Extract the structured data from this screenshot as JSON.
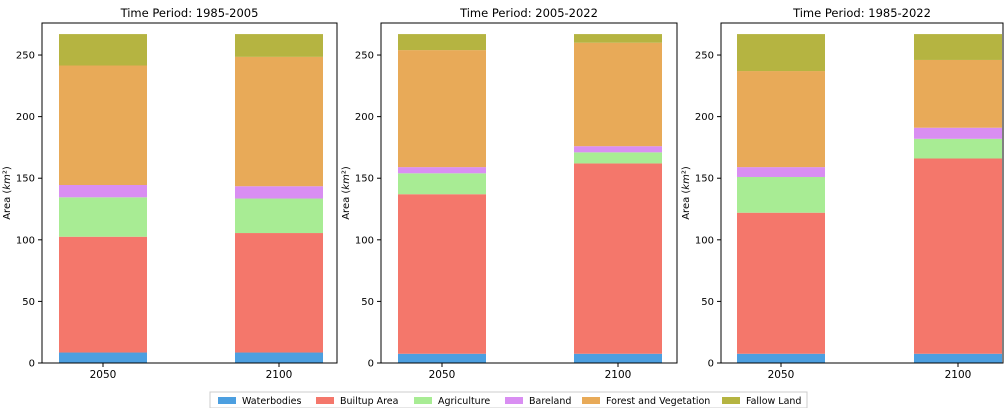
{
  "figure": {
    "legend_position": "bottom-center",
    "legend": [
      {
        "name": "Waterbodies",
        "color": "#4c9fe0"
      },
      {
        "name": "Builtup Area",
        "color": "#f4776b"
      },
      {
        "name": "Agriculture",
        "color": "#a8ec94"
      },
      {
        "name": "Bareland",
        "color": "#d98ef2"
      },
      {
        "name": "Forest and Vegetation",
        "color": "#e8aa58"
      },
      {
        "name": "Fallow Land",
        "color": "#b5b441"
      }
    ]
  },
  "chart_data": [
    {
      "type": "bar",
      "stacked": true,
      "title": "Time Period: 1985-2005",
      "xlabel": "",
      "ylabel": "Area (km²)",
      "ylim": [
        0,
        276
      ],
      "yticks": [
        0,
        50,
        100,
        150,
        200,
        250
      ],
      "categories": [
        "2050",
        "2100"
      ],
      "series": [
        {
          "name": "Waterbodies",
          "values": [
            8.5,
            8.5
          ]
        },
        {
          "name": "Builtup Area",
          "values": [
            94,
            97
          ]
        },
        {
          "name": "Agriculture",
          "values": [
            32,
            28
          ]
        },
        {
          "name": "Bareland",
          "values": [
            10,
            10
          ]
        },
        {
          "name": "Forest and Vegetation",
          "values": [
            97,
            105
          ]
        },
        {
          "name": "Fallow Land",
          "values": [
            25.5,
            18.5
          ]
        }
      ]
    },
    {
      "type": "bar",
      "stacked": true,
      "title": "Time Period: 2005-2022",
      "xlabel": "",
      "ylabel": "Area (km²)",
      "ylim": [
        0,
        276
      ],
      "yticks": [
        0,
        50,
        100,
        150,
        200,
        250
      ],
      "categories": [
        "2050",
        "2100"
      ],
      "series": [
        {
          "name": "Waterbodies",
          "values": [
            7.5,
            7.5
          ]
        },
        {
          "name": "Builtup Area",
          "values": [
            129.5,
            154.5
          ]
        },
        {
          "name": "Agriculture",
          "values": [
            17,
            9
          ]
        },
        {
          "name": "Bareland",
          "values": [
            5,
            5
          ]
        },
        {
          "name": "Forest and Vegetation",
          "values": [
            95,
            84
          ]
        },
        {
          "name": "Fallow Land",
          "values": [
            13,
            7
          ]
        }
      ]
    },
    {
      "type": "bar",
      "stacked": true,
      "title": "Time Period: 1985-2022",
      "xlabel": "",
      "ylabel": "Area (km²)",
      "ylim": [
        0,
        276
      ],
      "yticks": [
        0,
        50,
        100,
        150,
        200,
        250
      ],
      "categories": [
        "2050",
        "2100"
      ],
      "series": [
        {
          "name": "Waterbodies",
          "values": [
            7.5,
            7.5
          ]
        },
        {
          "name": "Builtup Area",
          "values": [
            114.5,
            158.5
          ]
        },
        {
          "name": "Agriculture",
          "values": [
            29,
            16
          ]
        },
        {
          "name": "Bareland",
          "values": [
            8,
            9
          ]
        },
        {
          "name": "Forest and Vegetation",
          "values": [
            78,
            55
          ]
        },
        {
          "name": "Fallow Land",
          "values": [
            30,
            21
          ]
        }
      ]
    }
  ]
}
